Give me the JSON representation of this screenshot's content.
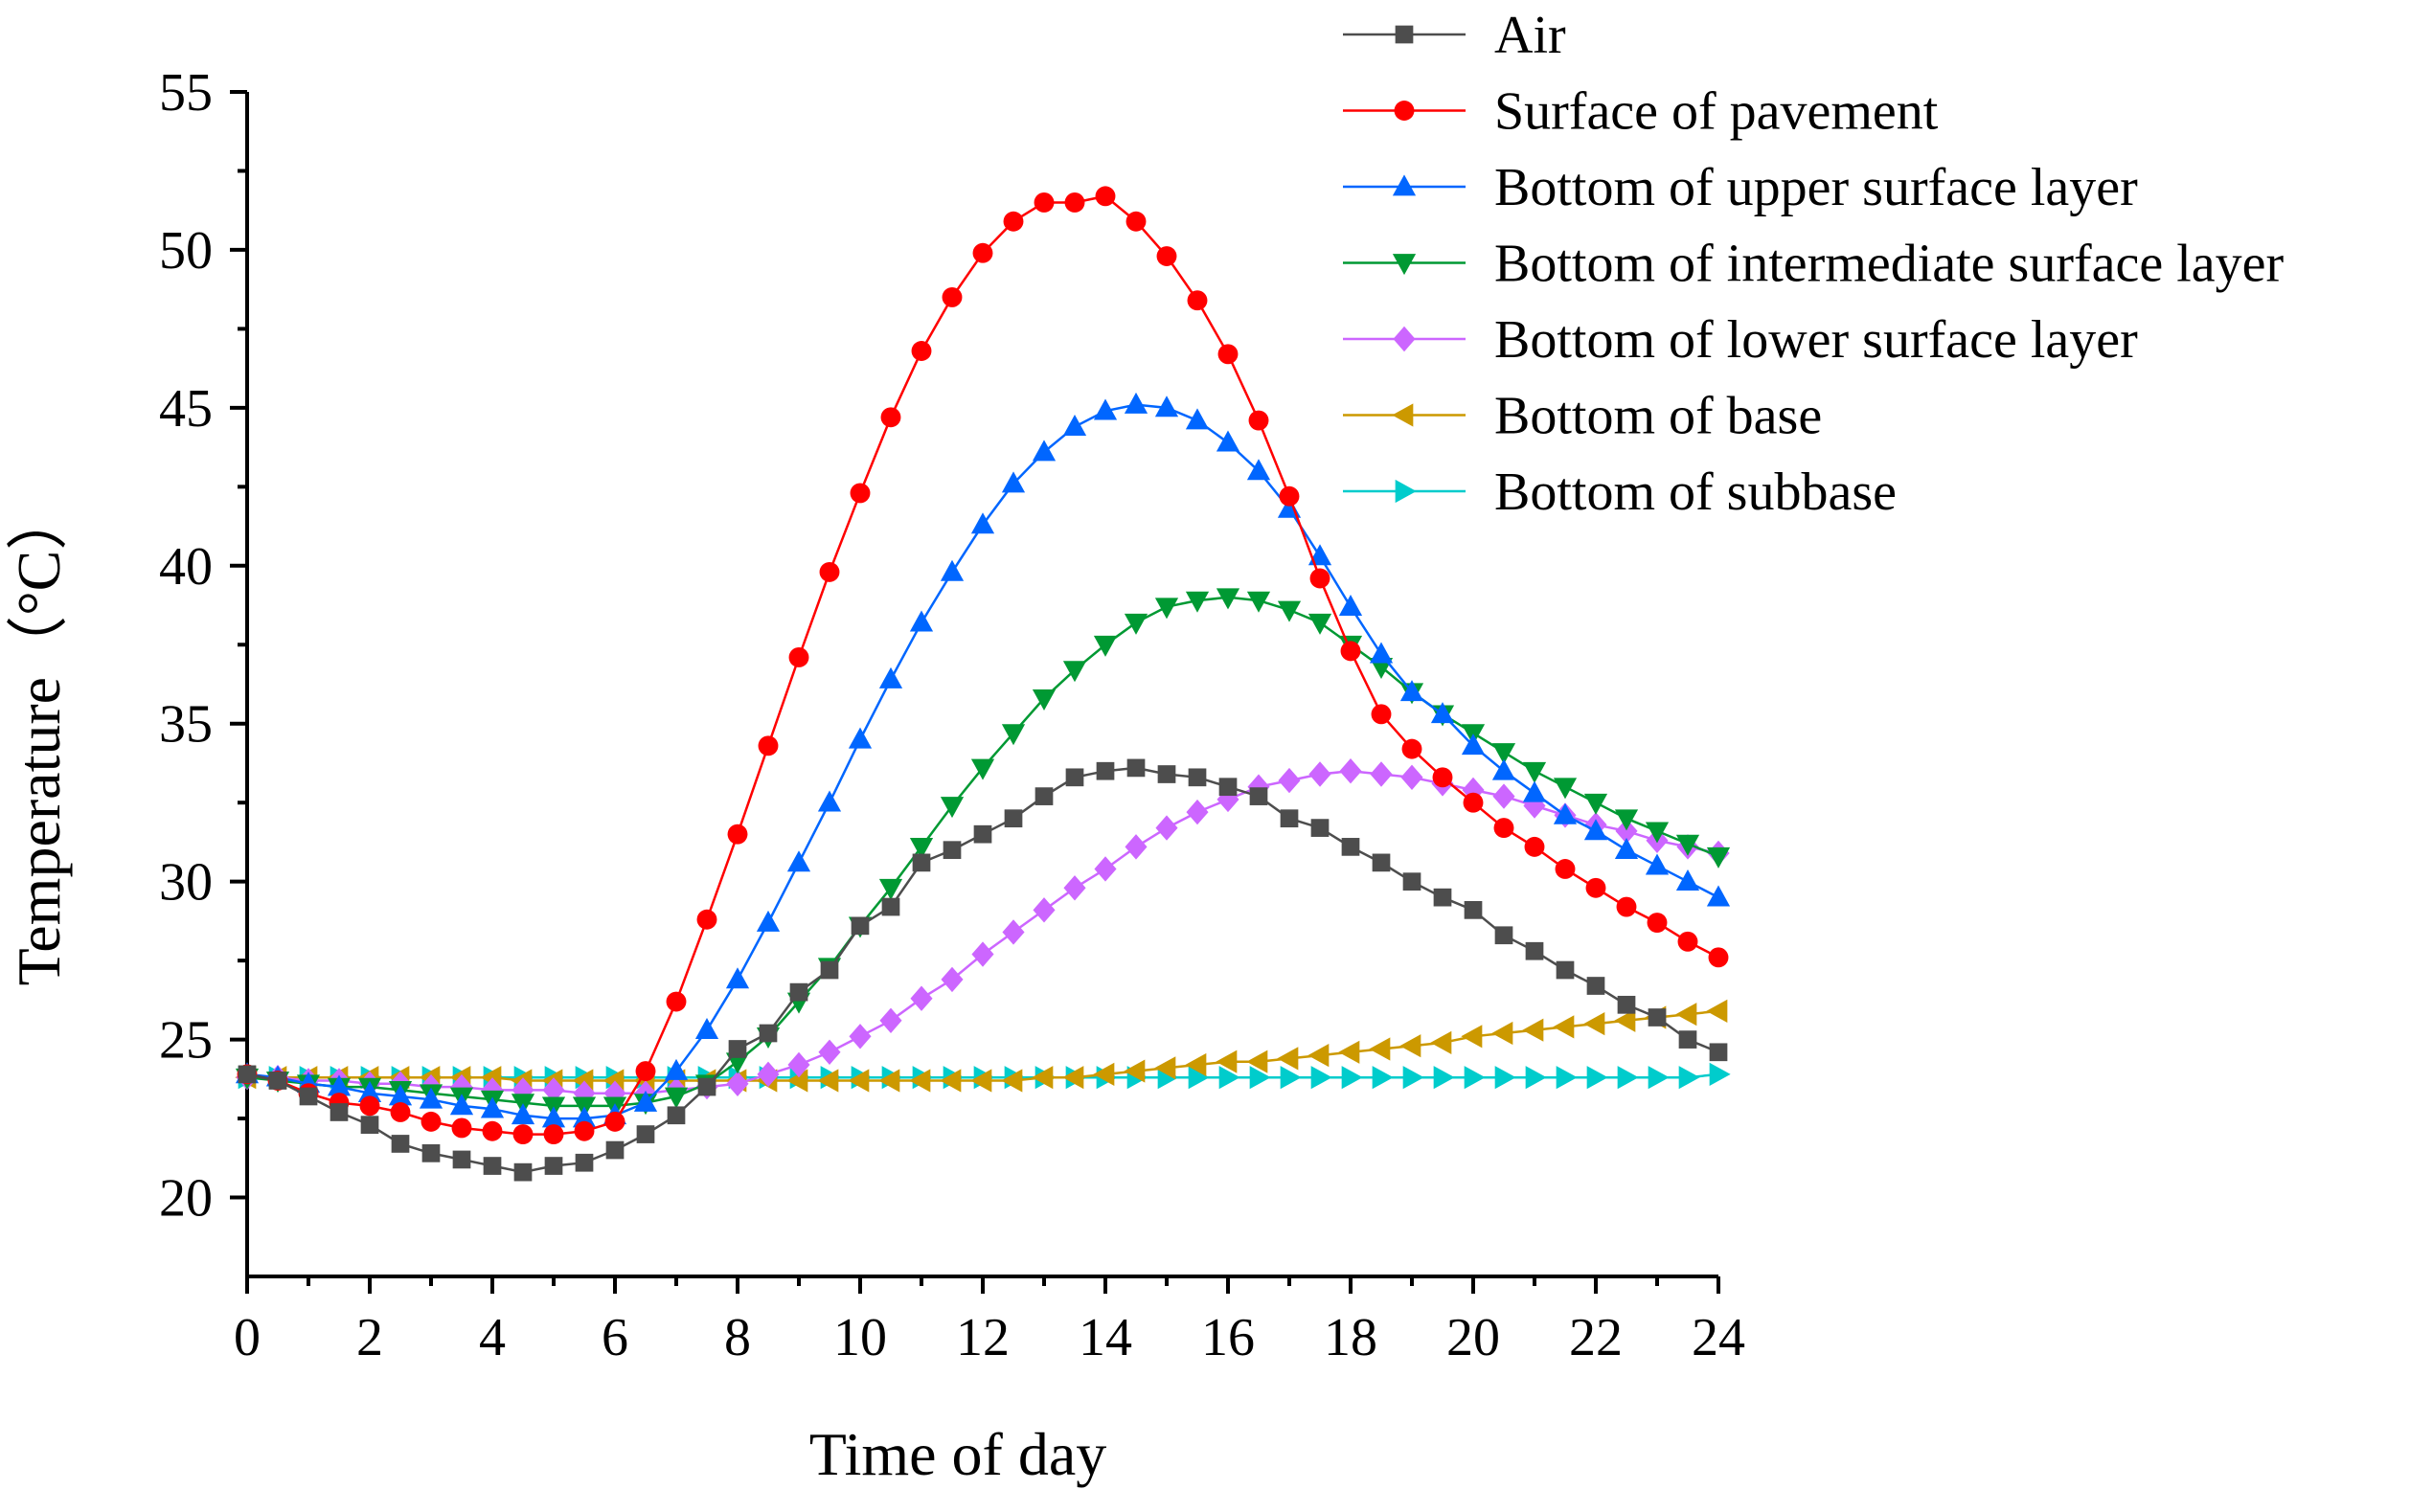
{
  "chart_data": {
    "type": "line",
    "title": "",
    "xlabel": "Time of day",
    "ylabel": "Temperature（°C）",
    "xlim": [
      0,
      24
    ],
    "ylim": [
      17.5,
      55
    ],
    "xticks": [
      "0",
      "2",
      "4",
      "6",
      "8",
      "10",
      "12",
      "14",
      "16",
      "18",
      "20",
      "22",
      "24"
    ],
    "yticks": [
      "20",
      "25",
      "30",
      "35",
      "40",
      "45",
      "50",
      "55"
    ],
    "grid": false,
    "legend_position": "top-right",
    "x": [
      0,
      0.5,
      1,
      1.5,
      2,
      2.5,
      3,
      3.5,
      4,
      4.5,
      5,
      5.5,
      6,
      6.5,
      7,
      7.5,
      8,
      8.5,
      9,
      9.5,
      10,
      10.5,
      11,
      11.5,
      12,
      12.5,
      13,
      13.5,
      14,
      14.5,
      15,
      15.5,
      16,
      16.5,
      17,
      17.5,
      18,
      18.5,
      19,
      19.5,
      20,
      20.5,
      21,
      21.5,
      22,
      22.5,
      23,
      23.5,
      24
    ],
    "series": [
      {
        "name": "Air",
        "color": "#4d4d4d",
        "marker": "square",
        "values": [
          23.9,
          23.7,
          23.2,
          22.7,
          22.3,
          21.7,
          21.4,
          21.2,
          21.0,
          20.8,
          21.0,
          21.1,
          21.5,
          22.0,
          22.6,
          23.5,
          24.7,
          25.2,
          26.5,
          27.2,
          28.6,
          29.2,
          30.6,
          31.0,
          31.5,
          32.0,
          32.7,
          33.3,
          33.5,
          33.6,
          33.4,
          33.3,
          33.0,
          32.7,
          32.0,
          31.7,
          31.1,
          30.6,
          30.0,
          29.5,
          29.1,
          28.3,
          27.8,
          27.2,
          26.7,
          26.1,
          25.7,
          25.0,
          24.6
        ]
      },
      {
        "name": "Surface of pavement",
        "color": "#ff0000",
        "marker": "circle",
        "values": [
          23.9,
          23.7,
          23.3,
          23.0,
          22.9,
          22.7,
          22.4,
          22.2,
          22.1,
          22.0,
          22.0,
          22.1,
          22.4,
          24.0,
          26.2,
          28.8,
          31.5,
          34.3,
          37.1,
          39.8,
          42.3,
          44.7,
          46.8,
          48.5,
          49.9,
          50.9,
          51.5,
          51.5,
          51.7,
          50.9,
          49.8,
          48.4,
          46.7,
          44.6,
          42.2,
          39.6,
          37.3,
          35.3,
          34.2,
          33.3,
          32.5,
          31.7,
          31.1,
          30.4,
          29.8,
          29.2,
          28.7,
          28.1,
          27.6
        ]
      },
      {
        "name": "Bottom of upper surface layer",
        "color": "#0066ff",
        "marker": "triangle-up",
        "values": [
          23.9,
          23.8,
          23.6,
          23.5,
          23.3,
          23.2,
          23.1,
          22.9,
          22.8,
          22.6,
          22.5,
          22.5,
          22.6,
          23.0,
          24.0,
          25.3,
          26.9,
          28.7,
          30.6,
          32.5,
          34.5,
          36.4,
          38.2,
          39.8,
          41.3,
          42.6,
          43.6,
          44.4,
          44.9,
          45.1,
          45.0,
          44.6,
          43.9,
          43.0,
          41.8,
          40.3,
          38.7,
          37.2,
          36.0,
          35.3,
          34.3,
          33.5,
          32.8,
          32.1,
          31.6,
          31.0,
          30.5,
          30.0,
          29.5
        ]
      },
      {
        "name": "Bottom of intermediate surface layer",
        "color": "#009933",
        "marker": "triangle-down",
        "values": [
          23.8,
          23.7,
          23.6,
          23.5,
          23.5,
          23.4,
          23.3,
          23.2,
          23.1,
          23.0,
          22.9,
          22.9,
          22.9,
          23.0,
          23.2,
          23.6,
          24.3,
          25.1,
          26.2,
          27.3,
          28.6,
          29.8,
          31.1,
          32.4,
          33.6,
          34.7,
          35.8,
          36.7,
          37.5,
          38.2,
          38.7,
          38.9,
          39.0,
          38.9,
          38.6,
          38.2,
          37.5,
          36.8,
          36.0,
          35.3,
          34.7,
          34.1,
          33.5,
          33.0,
          32.5,
          32.0,
          31.6,
          31.2,
          30.8
        ]
      },
      {
        "name": "Bottom of lower surface layer",
        "color": "#cc66ff",
        "marker": "diamond",
        "values": [
          23.8,
          23.8,
          23.7,
          23.7,
          23.6,
          23.6,
          23.5,
          23.5,
          23.4,
          23.4,
          23.4,
          23.3,
          23.3,
          23.3,
          23.4,
          23.5,
          23.6,
          23.9,
          24.2,
          24.6,
          25.1,
          25.6,
          26.3,
          26.9,
          27.7,
          28.4,
          29.1,
          29.8,
          30.4,
          31.1,
          31.7,
          32.2,
          32.6,
          33.0,
          33.2,
          33.4,
          33.5,
          33.4,
          33.3,
          33.1,
          32.9,
          32.7,
          32.4,
          32.1,
          31.8,
          31.6,
          31.3,
          31.1,
          30.9
        ]
      },
      {
        "name": "Bottom of base",
        "color": "#cc9900",
        "marker": "triangle-left",
        "values": [
          23.8,
          23.8,
          23.8,
          23.8,
          23.8,
          23.8,
          23.8,
          23.8,
          23.8,
          23.7,
          23.7,
          23.7,
          23.7,
          23.7,
          23.7,
          23.7,
          23.7,
          23.7,
          23.7,
          23.7,
          23.7,
          23.7,
          23.7,
          23.7,
          23.7,
          23.7,
          23.8,
          23.8,
          23.9,
          24.0,
          24.1,
          24.2,
          24.3,
          24.3,
          24.4,
          24.5,
          24.6,
          24.7,
          24.8,
          24.9,
          25.1,
          25.2,
          25.3,
          25.4,
          25.5,
          25.6,
          25.7,
          25.8,
          25.9
        ]
      },
      {
        "name": "Bottom of subbase",
        "color": "#00cccc",
        "marker": "triangle-right",
        "values": [
          23.8,
          23.8,
          23.8,
          23.8,
          23.8,
          23.8,
          23.8,
          23.8,
          23.8,
          23.8,
          23.8,
          23.8,
          23.8,
          23.8,
          23.8,
          23.8,
          23.8,
          23.8,
          23.8,
          23.8,
          23.8,
          23.8,
          23.8,
          23.8,
          23.8,
          23.8,
          23.8,
          23.8,
          23.8,
          23.8,
          23.8,
          23.8,
          23.8,
          23.8,
          23.8,
          23.8,
          23.8,
          23.8,
          23.8,
          23.8,
          23.8,
          23.8,
          23.8,
          23.8,
          23.8,
          23.8,
          23.8,
          23.8,
          23.9
        ]
      }
    ]
  }
}
